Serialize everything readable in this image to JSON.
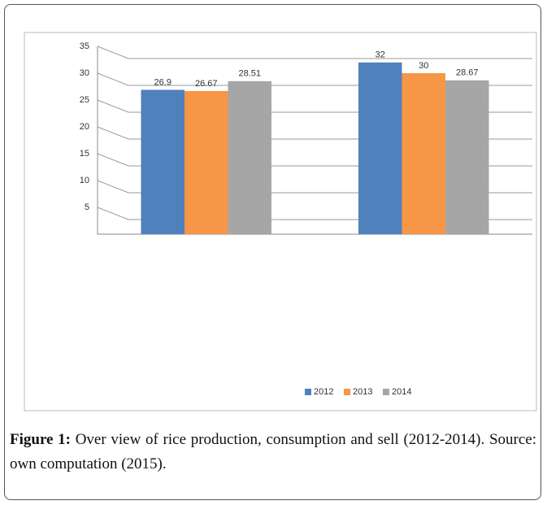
{
  "chart_data": {
    "type": "bar",
    "categories": [
      null,
      null
    ],
    "series": [
      {
        "name": "2012",
        "color": "#4f81bd",
        "values": [
          26.9,
          32
        ]
      },
      {
        "name": "2013",
        "color": "#f79646",
        "values": [
          26.67,
          30
        ]
      },
      {
        "name": "2014",
        "color": "#a6a6a6",
        "values": [
          28.51,
          28.67
        ]
      }
    ],
    "ylim": [
      0,
      35
    ],
    "yticks": [
      5,
      10,
      15,
      20,
      25,
      30,
      35
    ],
    "grid": true,
    "legend": "bottom"
  },
  "figure": {
    "label": "Figure 1:",
    "caption": "Over view of rice production, consumption and sell (2012-2014). Source: own computation (2015)."
  }
}
